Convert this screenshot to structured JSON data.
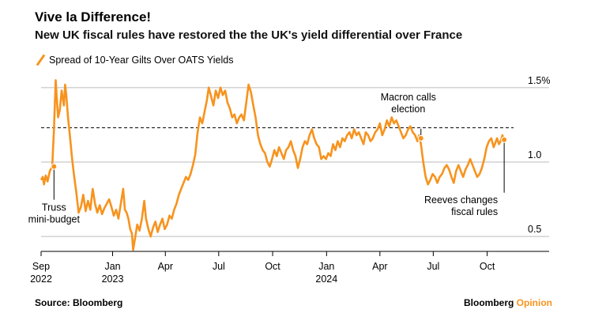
{
  "header": {
    "title": "Vive la Difference!",
    "subtitle": "New UK fiscal rules have restored the the UK's yield differential over France"
  },
  "footer": {
    "source": "Source: Bloomberg",
    "brand_main": "Bloomberg",
    "brand_accent": "Opinion"
  },
  "colors": {
    "series": "#f7931e",
    "grid": "#bbbbbb",
    "text": "#000000"
  },
  "chart_data": {
    "type": "line",
    "title": "Vive la Difference!",
    "subtitle": "New UK fiscal rules have restored the the UK's yield differential over France",
    "xlabel": "",
    "ylabel": "",
    "ylim": [
      0.4,
      1.6
    ],
    "y_ticks": [
      {
        "value": 1.5,
        "label": "1.5%"
      },
      {
        "value": 1.0,
        "label": "1.0"
      },
      {
        "value": 0.5,
        "label": "0.5"
      }
    ],
    "x_ticks": [
      {
        "date": "2022-09-01",
        "label": "Sep",
        "year": "2022"
      },
      {
        "date": "2023-01-01",
        "label": "Jan",
        "year": "2023"
      },
      {
        "date": "2023-04-01",
        "label": "Apr",
        "year": ""
      },
      {
        "date": "2023-07-01",
        "label": "Jul",
        "year": ""
      },
      {
        "date": "2023-10-01",
        "label": "Oct",
        "year": ""
      },
      {
        "date": "2024-01-01",
        "label": "Jan",
        "year": "2024"
      },
      {
        "date": "2024-04-01",
        "label": "Apr",
        "year": ""
      },
      {
        "date": "2024-07-01",
        "label": "Jul",
        "year": ""
      },
      {
        "date": "2024-10-01",
        "label": "Oct",
        "year": ""
      }
    ],
    "xlim": [
      "2022-09-01",
      "2024-11-15"
    ],
    "reference_line": {
      "value": 1.23,
      "style": "dashed"
    },
    "grid": true,
    "legend_position": "top-left",
    "series": [
      {
        "name": "Spread of 10-Year Gilts Over OATS Yields",
        "points": [
          [
            "2022-09-01",
            0.88
          ],
          [
            "2022-09-04",
            0.9
          ],
          [
            "2022-09-06",
            0.85
          ],
          [
            "2022-09-09",
            0.91
          ],
          [
            "2022-09-12",
            0.87
          ],
          [
            "2022-09-16",
            0.94
          ],
          [
            "2022-09-20",
            0.97
          ],
          [
            "2022-09-23",
            1.22
          ],
          [
            "2022-09-26",
            1.55
          ],
          [
            "2022-09-28",
            1.42
          ],
          [
            "2022-09-30",
            1.3
          ],
          [
            "2022-10-03",
            1.35
          ],
          [
            "2022-10-06",
            1.48
          ],
          [
            "2022-10-10",
            1.38
          ],
          [
            "2022-10-12",
            1.52
          ],
          [
            "2022-10-14",
            1.45
          ],
          [
            "2022-10-17",
            1.3
          ],
          [
            "2022-10-20",
            1.18
          ],
          [
            "2022-10-24",
            1.02
          ],
          [
            "2022-10-27",
            0.92
          ],
          [
            "2022-10-31",
            0.8
          ],
          [
            "2022-11-04",
            0.66
          ],
          [
            "2022-11-08",
            0.7
          ],
          [
            "2022-11-12",
            0.78
          ],
          [
            "2022-11-16",
            0.67
          ],
          [
            "2022-11-20",
            0.74
          ],
          [
            "2022-11-24",
            0.68
          ],
          [
            "2022-11-28",
            0.82
          ],
          [
            "2022-12-02",
            0.72
          ],
          [
            "2022-12-06",
            0.66
          ],
          [
            "2022-12-10",
            0.71
          ],
          [
            "2022-12-14",
            0.65
          ],
          [
            "2022-12-18",
            0.69
          ],
          [
            "2022-12-22",
            0.72
          ],
          [
            "2022-12-26",
            0.75
          ],
          [
            "2022-12-30",
            0.7
          ],
          [
            "2023-01-03",
            0.64
          ],
          [
            "2023-01-07",
            0.68
          ],
          [
            "2023-01-11",
            0.62
          ],
          [
            "2023-01-15",
            0.72
          ],
          [
            "2023-01-19",
            0.82
          ],
          [
            "2023-01-22",
            0.68
          ],
          [
            "2023-01-25",
            0.66
          ],
          [
            "2023-01-28",
            0.62
          ],
          [
            "2023-01-31",
            0.55
          ],
          [
            "2023-02-03",
            0.52
          ],
          [
            "2023-02-05",
            0.41
          ],
          [
            "2023-02-08",
            0.48
          ],
          [
            "2023-02-12",
            0.58
          ],
          [
            "2023-02-16",
            0.54
          ],
          [
            "2023-02-20",
            0.62
          ],
          [
            "2023-02-24",
            0.74
          ],
          [
            "2023-02-27",
            0.62
          ],
          [
            "2023-03-03",
            0.55
          ],
          [
            "2023-03-07",
            0.5
          ],
          [
            "2023-03-11",
            0.56
          ],
          [
            "2023-03-15",
            0.6
          ],
          [
            "2023-03-19",
            0.53
          ],
          [
            "2023-03-23",
            0.58
          ],
          [
            "2023-03-27",
            0.62
          ],
          [
            "2023-03-31",
            0.55
          ],
          [
            "2023-04-04",
            0.58
          ],
          [
            "2023-04-08",
            0.64
          ],
          [
            "2023-04-12",
            0.62
          ],
          [
            "2023-04-16",
            0.68
          ],
          [
            "2023-04-20",
            0.72
          ],
          [
            "2023-04-24",
            0.78
          ],
          [
            "2023-04-28",
            0.82
          ],
          [
            "2023-05-02",
            0.86
          ],
          [
            "2023-05-06",
            0.9
          ],
          [
            "2023-05-10",
            0.88
          ],
          [
            "2023-05-14",
            0.92
          ],
          [
            "2023-05-18",
            0.98
          ],
          [
            "2023-05-22",
            1.05
          ],
          [
            "2023-05-26",
            1.2
          ],
          [
            "2023-05-30",
            1.3
          ],
          [
            "2023-06-03",
            1.26
          ],
          [
            "2023-06-07",
            1.34
          ],
          [
            "2023-06-11",
            1.42
          ],
          [
            "2023-06-14",
            1.5
          ],
          [
            "2023-06-18",
            1.44
          ],
          [
            "2023-06-22",
            1.38
          ],
          [
            "2023-06-26",
            1.48
          ],
          [
            "2023-06-30",
            1.43
          ],
          [
            "2023-07-04",
            1.5
          ],
          [
            "2023-07-08",
            1.45
          ],
          [
            "2023-07-12",
            1.48
          ],
          [
            "2023-07-16",
            1.4
          ],
          [
            "2023-07-20",
            1.36
          ],
          [
            "2023-07-24",
            1.3
          ],
          [
            "2023-07-28",
            1.32
          ],
          [
            "2023-08-01",
            1.26
          ],
          [
            "2023-08-05",
            1.3
          ],
          [
            "2023-08-09",
            1.32
          ],
          [
            "2023-08-13",
            1.28
          ],
          [
            "2023-08-17",
            1.4
          ],
          [
            "2023-08-21",
            1.52
          ],
          [
            "2023-08-25",
            1.47
          ],
          [
            "2023-08-29",
            1.38
          ],
          [
            "2023-09-02",
            1.3
          ],
          [
            "2023-09-06",
            1.18
          ],
          [
            "2023-09-10",
            1.12
          ],
          [
            "2023-09-14",
            1.08
          ],
          [
            "2023-09-18",
            1.06
          ],
          [
            "2023-09-22",
            1.0
          ],
          [
            "2023-09-26",
            0.97
          ],
          [
            "2023-09-30",
            1.02
          ],
          [
            "2023-10-04",
            1.08
          ],
          [
            "2023-10-08",
            1.04
          ],
          [
            "2023-10-12",
            1.1
          ],
          [
            "2023-10-16",
            1.06
          ],
          [
            "2023-10-20",
            1.02
          ],
          [
            "2023-10-24",
            1.08
          ],
          [
            "2023-10-28",
            1.1
          ],
          [
            "2023-11-01",
            1.14
          ],
          [
            "2023-11-05",
            1.08
          ],
          [
            "2023-11-09",
            1.04
          ],
          [
            "2023-11-13",
            0.96
          ],
          [
            "2023-11-17",
            1.02
          ],
          [
            "2023-11-21",
            1.1
          ],
          [
            "2023-11-25",
            1.14
          ],
          [
            "2023-11-29",
            1.12
          ],
          [
            "2023-12-03",
            1.18
          ],
          [
            "2023-12-07",
            1.22
          ],
          [
            "2023-12-11",
            1.16
          ],
          [
            "2023-12-15",
            1.12
          ],
          [
            "2023-12-19",
            1.1
          ],
          [
            "2023-12-23",
            1.02
          ],
          [
            "2023-12-27",
            1.04
          ],
          [
            "2023-12-31",
            1.02
          ],
          [
            "2024-01-04",
            1.06
          ],
          [
            "2024-01-08",
            1.04
          ],
          [
            "2024-01-12",
            1.12
          ],
          [
            "2024-01-16",
            1.08
          ],
          [
            "2024-01-20",
            1.14
          ],
          [
            "2024-01-24",
            1.1
          ],
          [
            "2024-01-28",
            1.16
          ],
          [
            "2024-02-01",
            1.14
          ],
          [
            "2024-02-05",
            1.18
          ],
          [
            "2024-02-09",
            1.2
          ],
          [
            "2024-02-13",
            1.16
          ],
          [
            "2024-02-17",
            1.22
          ],
          [
            "2024-02-21",
            1.18
          ],
          [
            "2024-02-25",
            1.2
          ],
          [
            "2024-02-29",
            1.16
          ],
          [
            "2024-03-04",
            1.12
          ],
          [
            "2024-03-08",
            1.2
          ],
          [
            "2024-03-12",
            1.18
          ],
          [
            "2024-03-16",
            1.14
          ],
          [
            "2024-03-20",
            1.16
          ],
          [
            "2024-03-24",
            1.2
          ],
          [
            "2024-03-28",
            1.22
          ],
          [
            "2024-04-01",
            1.26
          ],
          [
            "2024-04-05",
            1.18
          ],
          [
            "2024-04-09",
            1.22
          ],
          [
            "2024-04-13",
            1.28
          ],
          [
            "2024-04-17",
            1.24
          ],
          [
            "2024-04-21",
            1.3
          ],
          [
            "2024-04-25",
            1.26
          ],
          [
            "2024-04-29",
            1.28
          ],
          [
            "2024-05-03",
            1.24
          ],
          [
            "2024-05-07",
            1.2
          ],
          [
            "2024-05-11",
            1.16
          ],
          [
            "2024-05-15",
            1.18
          ],
          [
            "2024-05-19",
            1.22
          ],
          [
            "2024-05-23",
            1.24
          ],
          [
            "2024-05-27",
            1.2
          ],
          [
            "2024-05-31",
            1.18
          ],
          [
            "2024-06-04",
            1.14
          ],
          [
            "2024-06-07",
            1.18
          ],
          [
            "2024-06-10",
            1.12
          ],
          [
            "2024-06-14",
            1.0
          ],
          [
            "2024-06-18",
            0.9
          ],
          [
            "2024-06-22",
            0.85
          ],
          [
            "2024-06-26",
            0.88
          ],
          [
            "2024-06-30",
            0.92
          ],
          [
            "2024-07-04",
            0.9
          ],
          [
            "2024-07-08",
            0.86
          ],
          [
            "2024-07-12",
            0.9
          ],
          [
            "2024-07-16",
            0.92
          ],
          [
            "2024-07-20",
            0.96
          ],
          [
            "2024-07-24",
            0.98
          ],
          [
            "2024-07-28",
            0.95
          ],
          [
            "2024-08-01",
            0.9
          ],
          [
            "2024-08-05",
            0.86
          ],
          [
            "2024-08-09",
            0.94
          ],
          [
            "2024-08-13",
            0.98
          ],
          [
            "2024-08-17",
            0.94
          ],
          [
            "2024-08-21",
            0.9
          ],
          [
            "2024-08-25",
            0.95
          ],
          [
            "2024-08-29",
            0.98
          ],
          [
            "2024-09-02",
            1.02
          ],
          [
            "2024-09-06",
            0.98
          ],
          [
            "2024-09-10",
            0.94
          ],
          [
            "2024-09-14",
            0.9
          ],
          [
            "2024-09-18",
            0.92
          ],
          [
            "2024-09-22",
            0.96
          ],
          [
            "2024-09-26",
            1.02
          ],
          [
            "2024-09-30",
            1.1
          ],
          [
            "2024-10-04",
            1.14
          ],
          [
            "2024-10-08",
            1.16
          ],
          [
            "2024-10-12",
            1.1
          ],
          [
            "2024-10-15",
            1.13
          ],
          [
            "2024-10-18",
            1.16
          ],
          [
            "2024-10-21",
            1.12
          ],
          [
            "2024-10-24",
            1.14
          ],
          [
            "2024-10-27",
            1.18
          ],
          [
            "2024-10-30",
            1.15
          ]
        ]
      }
    ],
    "annotations": [
      {
        "id": "truss",
        "date": "2022-09-23",
        "value": 0.97,
        "lines": [
          "Truss",
          "mini-budget"
        ]
      },
      {
        "id": "macron",
        "date": "2024-06-10",
        "value": 1.16,
        "lines": [
          "Macron calls",
          "election"
        ]
      },
      {
        "id": "reeves",
        "date": "2024-10-30",
        "value": 1.15,
        "lines": [
          "Reeves changes",
          "fiscal rules"
        ]
      }
    ]
  }
}
